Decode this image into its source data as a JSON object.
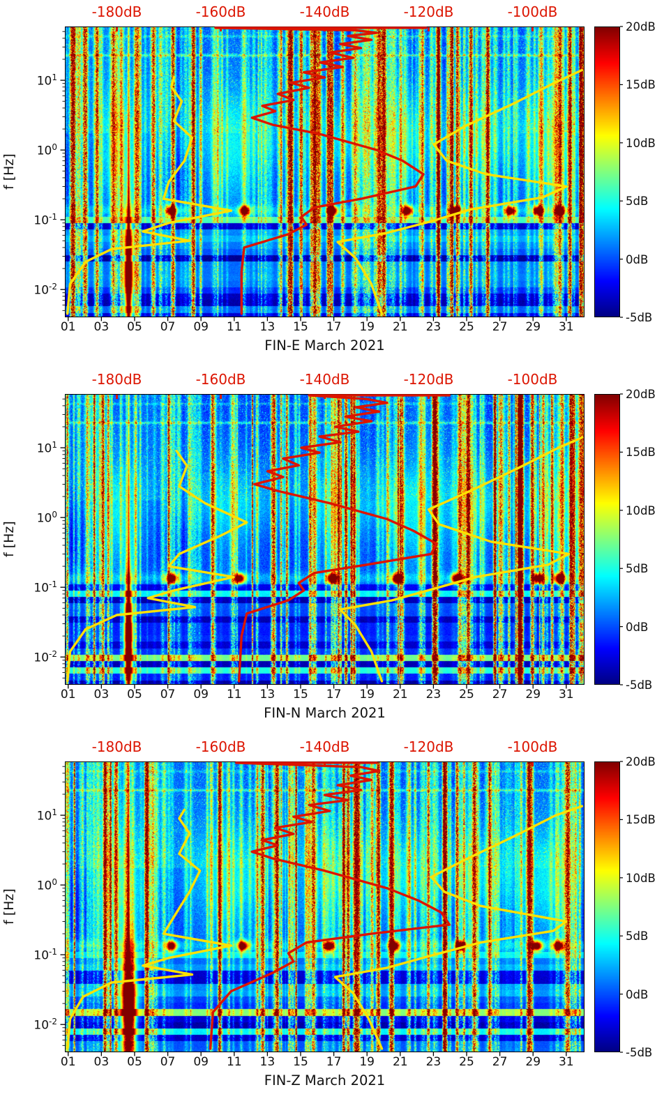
{
  "chart_data": {
    "type": "heatmap",
    "description": "Three stacked spectrogram panels (FIN-E, FIN-N, FIN-Z magnetometer components, March 2021) showing signal power in dB versus day of month and frequency, with a jet colorbar from -5dB to 20dB. Yellow and red reference noise-level curves are plotted against the red top axis scale (-190 to -90 dB).",
    "colors": {
      "accent_red": "#dc1400",
      "curve_yellow": "#ffe100",
      "curve_red": "#dc1400",
      "colormap": "jet",
      "colormap_stops": [
        "#00008f",
        "#0000ff",
        "#00ffff",
        "#80ff00",
        "#ffff00",
        "#ff0000",
        "#800000"
      ]
    },
    "axes": {
      "x_tick_labels": [
        "01",
        "03",
        "05",
        "07",
        "09",
        "11",
        "13",
        "15",
        "17",
        "19",
        "21",
        "23",
        "25",
        "27",
        "29",
        "31"
      ],
      "x_tick_days": [
        1,
        3,
        5,
        7,
        9,
        11,
        13,
        15,
        17,
        19,
        21,
        23,
        25,
        27,
        29,
        31
      ],
      "x_range_days": [
        0.8,
        32.1
      ],
      "y_label": "f [Hz]",
      "y_tick_labels": [
        {
          "base": "10",
          "exp": "-2"
        },
        {
          "base": "10",
          "exp": "-1"
        },
        {
          "base": "10",
          "exp": "0"
        },
        {
          "base": "10",
          "exp": "1"
        }
      ],
      "y_tick_hz": [
        0.01,
        0.1,
        1,
        10
      ],
      "y_range_hz": [
        0.004,
        59
      ],
      "top_axis_labels": [
        "-180dB",
        "-160dB",
        "-140dB",
        "-120dB",
        "-100dB"
      ],
      "top_axis_values_db": [
        -180,
        -160,
        -140,
        -120,
        -100
      ],
      "top_axis_range_db": [
        -190,
        -90
      ]
    },
    "colorbar": {
      "tick_labels": [
        "20dB",
        "15dB",
        "10dB",
        "5dB",
        "0dB",
        "-5dB"
      ],
      "tick_values_db": [
        20,
        15,
        10,
        5,
        0,
        -5
      ],
      "range_db": [
        -5,
        20
      ]
    },
    "panels": [
      {
        "title": "FIN-E March 2021",
        "yellow_curve_left_db_hz": [
          [
            -189.5,
            0.0045
          ],
          [
            -189,
            0.012
          ],
          [
            -186,
            0.025
          ],
          [
            -181,
            0.038
          ],
          [
            -166,
            0.05
          ],
          [
            -175,
            0.068
          ],
          [
            -170,
            0.09
          ],
          [
            -158,
            0.135
          ],
          [
            -171,
            0.2
          ],
          [
            -170,
            0.35
          ],
          [
            -167,
            0.7
          ],
          [
            -165.5,
            1.5
          ],
          [
            -169,
            2.6
          ],
          [
            -167.5,
            5
          ],
          [
            -169.5,
            8
          ],
          [
            -169,
            11
          ]
        ],
        "yellow_curve_right_db_hz": [
          [
            -129,
            0.0045
          ],
          [
            -131,
            0.012
          ],
          [
            -134,
            0.028
          ],
          [
            -137.5,
            0.048
          ],
          [
            -128,
            0.065
          ],
          [
            -119.5,
            0.095
          ],
          [
            -112,
            0.14
          ],
          [
            -98,
            0.21
          ],
          [
            -93.5,
            0.3
          ],
          [
            -109,
            0.45
          ],
          [
            -116.5,
            0.7
          ],
          [
            -119,
            1.2
          ],
          [
            -113,
            2.2
          ],
          [
            -104,
            4.5
          ],
          [
            -96,
            9
          ],
          [
            -90.5,
            14
          ]
        ],
        "red_curve_db_hz": [
          [
            -156,
            0.0045
          ],
          [
            -156,
            0.018
          ],
          [
            -155.5,
            0.04
          ],
          [
            -147,
            0.062
          ],
          [
            -143.5,
            0.085
          ],
          [
            -144.5,
            0.11
          ],
          [
            -142,
            0.15
          ],
          [
            -133,
            0.2
          ],
          [
            -122.5,
            0.3
          ],
          [
            -121,
            0.45
          ],
          [
            -125,
            0.7
          ],
          [
            -130,
            1.0
          ],
          [
            -141,
            1.7
          ],
          [
            -150,
            2.3
          ],
          [
            -154,
            2.9
          ],
          [
            -149.5,
            3.6
          ],
          [
            -152,
            4.3
          ],
          [
            -146,
            5.2
          ],
          [
            -149,
            6.4
          ],
          [
            -143,
            7.8
          ],
          [
            -146.5,
            9.2
          ],
          [
            -140,
            11
          ],
          [
            -144,
            13
          ],
          [
            -136.5,
            15.5
          ],
          [
            -141,
            18
          ],
          [
            -134.5,
            21
          ],
          [
            -139,
            25
          ],
          [
            -133,
            29
          ],
          [
            -137,
            33
          ],
          [
            -131,
            38
          ],
          [
            -135.5,
            43
          ],
          [
            -130,
            48
          ],
          [
            -134,
            52
          ],
          [
            -161,
            56.5
          ],
          [
            -120.5,
            56.5
          ]
        ],
        "features": {
          "pc1_spot_days": [
            7.2,
            11.6,
            16.9,
            21.4,
            24.3,
            27.6,
            29.3,
            30.6
          ],
          "pc1_band_hz": 0.135,
          "saturated_artifact_day": 4.62,
          "artifact_day_width": 0.18,
          "strong_streak_days": [
            4.62
          ],
          "broadband_active_day_ranges": [
            [
              3,
              5.3
            ],
            [
              8.6,
              13.4
            ],
            [
              15.8,
              19
            ],
            [
              20,
              22.6
            ],
            [
              23.8,
              27
            ],
            [
              28.4,
              31.8
            ]
          ],
          "horizontal_interference_hz": [
            23,
            43
          ],
          "quiet_band_hz": [
            0.15,
            0.8
          ]
        }
      },
      {
        "title": "FIN-N March 2021",
        "yellow_curve_left_db_hz": [
          [
            -189.5,
            0.0045
          ],
          [
            -189,
            0.012
          ],
          [
            -186,
            0.025
          ],
          [
            -180,
            0.04
          ],
          [
            -165,
            0.052
          ],
          [
            -174,
            0.07
          ],
          [
            -169,
            0.09
          ],
          [
            -157.5,
            0.14
          ],
          [
            -170,
            0.2
          ],
          [
            -168,
            0.3
          ],
          [
            -160,
            0.55
          ],
          [
            -155,
            0.85
          ],
          [
            -163,
            1.6
          ],
          [
            -168,
            2.8
          ],
          [
            -166.5,
            5.5
          ],
          [
            -168.5,
            9
          ]
        ],
        "yellow_curve_right_db_hz": [
          [
            -129,
            0.0045
          ],
          [
            -131,
            0.012
          ],
          [
            -134,
            0.028
          ],
          [
            -137,
            0.048
          ],
          [
            -127,
            0.065
          ],
          [
            -119,
            0.095
          ],
          [
            -111,
            0.14
          ],
          [
            -97,
            0.21
          ],
          [
            -93,
            0.3
          ],
          [
            -108,
            0.45
          ],
          [
            -118,
            0.8
          ],
          [
            -120,
            1.3
          ],
          [
            -112,
            2.4
          ],
          [
            -103,
            5
          ],
          [
            -95,
            10
          ],
          [
            -90.5,
            14
          ]
        ],
        "red_curve_db_hz": [
          [
            -156.5,
            0.0045
          ],
          [
            -156,
            0.02
          ],
          [
            -155,
            0.042
          ],
          [
            -147,
            0.065
          ],
          [
            -144,
            0.09
          ],
          [
            -145,
            0.115
          ],
          [
            -142,
            0.16
          ],
          [
            -132,
            0.21
          ],
          [
            -119.5,
            0.3
          ],
          [
            -118.5,
            0.42
          ],
          [
            -123,
            0.65
          ],
          [
            -128,
            0.95
          ],
          [
            -139,
            1.6
          ],
          [
            -149,
            2.4
          ],
          [
            -153.5,
            3.0
          ],
          [
            -148,
            3.8
          ],
          [
            -151,
            4.6
          ],
          [
            -145,
            5.6
          ],
          [
            -148,
            7
          ],
          [
            -141,
            8.5
          ],
          [
            -144.5,
            10
          ],
          [
            -137,
            12
          ],
          [
            -141,
            14.5
          ],
          [
            -133.5,
            17
          ],
          [
            -138,
            20
          ],
          [
            -131,
            24
          ],
          [
            -136,
            28
          ],
          [
            -129.5,
            33
          ],
          [
            -134,
            38
          ],
          [
            -128,
            44
          ],
          [
            -132,
            50
          ],
          [
            -143,
            56.5
          ],
          [
            -116,
            56.5
          ]
        ],
        "features": {
          "pc1_spot_days": [
            7.2,
            11.3,
            16.9,
            20.8,
            24.4,
            29.3,
            30.6
          ],
          "pc1_band_hz": 0.135,
          "saturated_artifact_day": 4.62,
          "artifact_day_width": 0.18,
          "strong_streak_days": [
            4.62
          ],
          "broadband_active_day_ranges": [
            [
              3,
              5.3
            ],
            [
              8.6,
              13.4
            ],
            [
              15.8,
              19
            ],
            [
              20,
              22.6
            ],
            [
              23.8,
              27
            ],
            [
              28.4,
              31.8
            ]
          ],
          "horizontal_interference_hz": [
            23,
            43
          ],
          "quiet_band_hz": [
            0.15,
            0.8
          ]
        }
      },
      {
        "title": "FIN-Z March 2021",
        "yellow_curve_left_db_hz": [
          [
            -189.5,
            0.0045
          ],
          [
            -189,
            0.012
          ],
          [
            -186.5,
            0.025
          ],
          [
            -181,
            0.04
          ],
          [
            -165.5,
            0.052
          ],
          [
            -175,
            0.07
          ],
          [
            -170,
            0.09
          ],
          [
            -158,
            0.135
          ],
          [
            -171,
            0.2
          ],
          [
            -169,
            0.35
          ],
          [
            -166,
            0.8
          ],
          [
            -164,
            1.6
          ],
          [
            -168,
            2.8
          ],
          [
            -166,
            5.5
          ],
          [
            -168,
            9
          ],
          [
            -167,
            12
          ]
        ],
        "yellow_curve_right_db_hz": [
          [
            -129,
            0.0045
          ],
          [
            -131.5,
            0.012
          ],
          [
            -134.5,
            0.028
          ],
          [
            -138,
            0.048
          ],
          [
            -128,
            0.065
          ],
          [
            -120,
            0.095
          ],
          [
            -110,
            0.15
          ],
          [
            -96,
            0.22
          ],
          [
            -93.5,
            0.3
          ],
          [
            -110,
            0.5
          ],
          [
            -117,
            0.8
          ],
          [
            -119.5,
            1.3
          ],
          [
            -112.5,
            2.4
          ],
          [
            -103.5,
            5
          ],
          [
            -95.5,
            10
          ],
          [
            -90.5,
            13.5
          ]
        ],
        "red_curve_db_hz": [
          [
            -162,
            0.0045
          ],
          [
            -161.5,
            0.015
          ],
          [
            -158,
            0.03
          ],
          [
            -150,
            0.055
          ],
          [
            -146,
            0.08
          ],
          [
            -147,
            0.105
          ],
          [
            -143.5,
            0.15
          ],
          [
            -131,
            0.2
          ],
          [
            -116,
            0.27
          ],
          [
            -117.5,
            0.4
          ],
          [
            -122,
            0.6
          ],
          [
            -128,
            0.9
          ],
          [
            -140,
            1.6
          ],
          [
            -150,
            2.4
          ],
          [
            -154,
            3.0
          ],
          [
            -149,
            3.7
          ],
          [
            -152,
            4.4
          ],
          [
            -146,
            5.4
          ],
          [
            -149.5,
            6.6
          ],
          [
            -142.5,
            8
          ],
          [
            -146,
            9.5
          ],
          [
            -139,
            11.5
          ],
          [
            -143,
            14
          ],
          [
            -135.5,
            16.5
          ],
          [
            -140,
            19.5
          ],
          [
            -133,
            23
          ],
          [
            -137.5,
            27
          ],
          [
            -131,
            32
          ],
          [
            -135,
            37
          ],
          [
            -129.5,
            43
          ],
          [
            -133,
            49
          ],
          [
            -157,
            56.5
          ],
          [
            -130,
            56.5
          ]
        ],
        "features": {
          "pc1_spot_days": [
            7.2,
            11.5,
            16.7,
            20.6,
            24.6,
            29.2,
            30.5
          ],
          "pc1_band_hz": 0.135,
          "saturated_artifact_day": 4.62,
          "artifact_day_width": 0.3,
          "strong_streak_days": [
            4.62
          ],
          "broadband_active_day_ranges": [
            [
              3,
              5.3
            ],
            [
              8.6,
              13.4
            ],
            [
              15.8,
              19
            ],
            [
              20,
              22.6
            ],
            [
              23.8,
              27
            ],
            [
              28.4,
              31.8
            ]
          ],
          "horizontal_interference_hz": [
            23,
            43
          ],
          "quiet_band_hz": [
            0.15,
            0.8
          ]
        }
      }
    ]
  }
}
